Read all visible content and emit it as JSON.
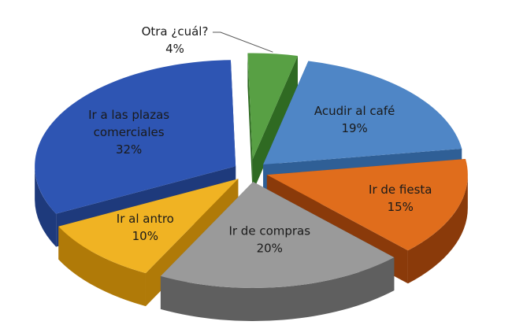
{
  "chart_data": {
    "type": "pie",
    "style": "3d-exploded",
    "slices": [
      {
        "label": "Acudir al café",
        "value": 19,
        "value_label": "19%",
        "color": "#4f86c6",
        "side_color": "#2f5f96",
        "label_color": "#1a1a1a"
      },
      {
        "label": "Ir de fiesta",
        "value": 15,
        "value_label": "15%",
        "color": "#e06d1c",
        "side_color": "#8a3a0a",
        "label_color": "#1a1a1a"
      },
      {
        "label": "Ir de compras",
        "value": 20,
        "value_label": "20%",
        "color": "#9a9a9a",
        "side_color": "#5f5f5f",
        "label_color": "#1a1a1a"
      },
      {
        "label": "Ir al antro",
        "value": 10,
        "value_label": "10%",
        "color": "#f0b323",
        "side_color": "#b07a08",
        "label_color": "#1a1a1a"
      },
      {
        "label": "Ir a las plazas comerciales",
        "value": 32,
        "value_label": "32%",
        "color": "#2e55b3",
        "side_color": "#1e3a7c",
        "label_color": "#1a1a1a"
      },
      {
        "label": "Otra ¿cuál?",
        "value": 4,
        "value_label": "4%",
        "color": "#58a044",
        "side_color": "#2f6a22",
        "label_color": "#1a1a1a"
      }
    ]
  }
}
